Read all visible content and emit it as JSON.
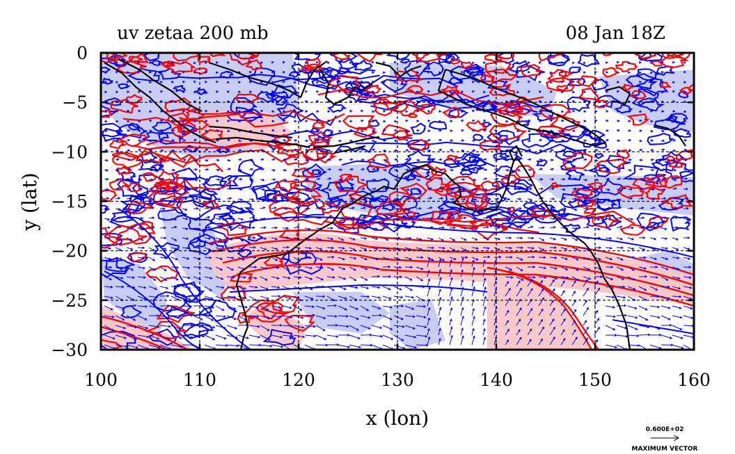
{
  "figure": {
    "title_left": "uv zetaa 200 mb",
    "title_right": "08 Jan 18Z",
    "x_axis_label": "x (lon)",
    "y_axis_label": "y (lat)",
    "vector_scale_value": "0.600E+02",
    "vector_scale_label": "MAXIMUM VECTOR"
  },
  "map": {
    "lon_range": [
      100,
      160
    ],
    "lat_range": [
      -30,
      0
    ],
    "x_ticks": [
      100,
      110,
      120,
      130,
      140,
      150,
      160
    ],
    "y_ticks": [
      0,
      -5,
      -10,
      -15,
      -20,
      -25,
      -30
    ],
    "x_tick_labels": [
      "100",
      "110",
      "120",
      "130",
      "140",
      "150",
      "160"
    ],
    "y_tick_labels": [
      "0",
      "−5",
      "−10",
      "−15",
      "−20",
      "−25",
      "−30"
    ],
    "grid_lines_lon": [
      110,
      120,
      130,
      140,
      150
    ],
    "grid_lines_lat": [
      -5,
      -10,
      -15,
      -20,
      -25
    ],
    "colors": {
      "positive_contour": "#ff0000",
      "negative_contour": "#0000ff",
      "positive_fill": "#f9c8c8",
      "negative_fill": "#c8cdf4",
      "coastline": "#000000",
      "vectors": "#0000ff"
    }
  }
}
